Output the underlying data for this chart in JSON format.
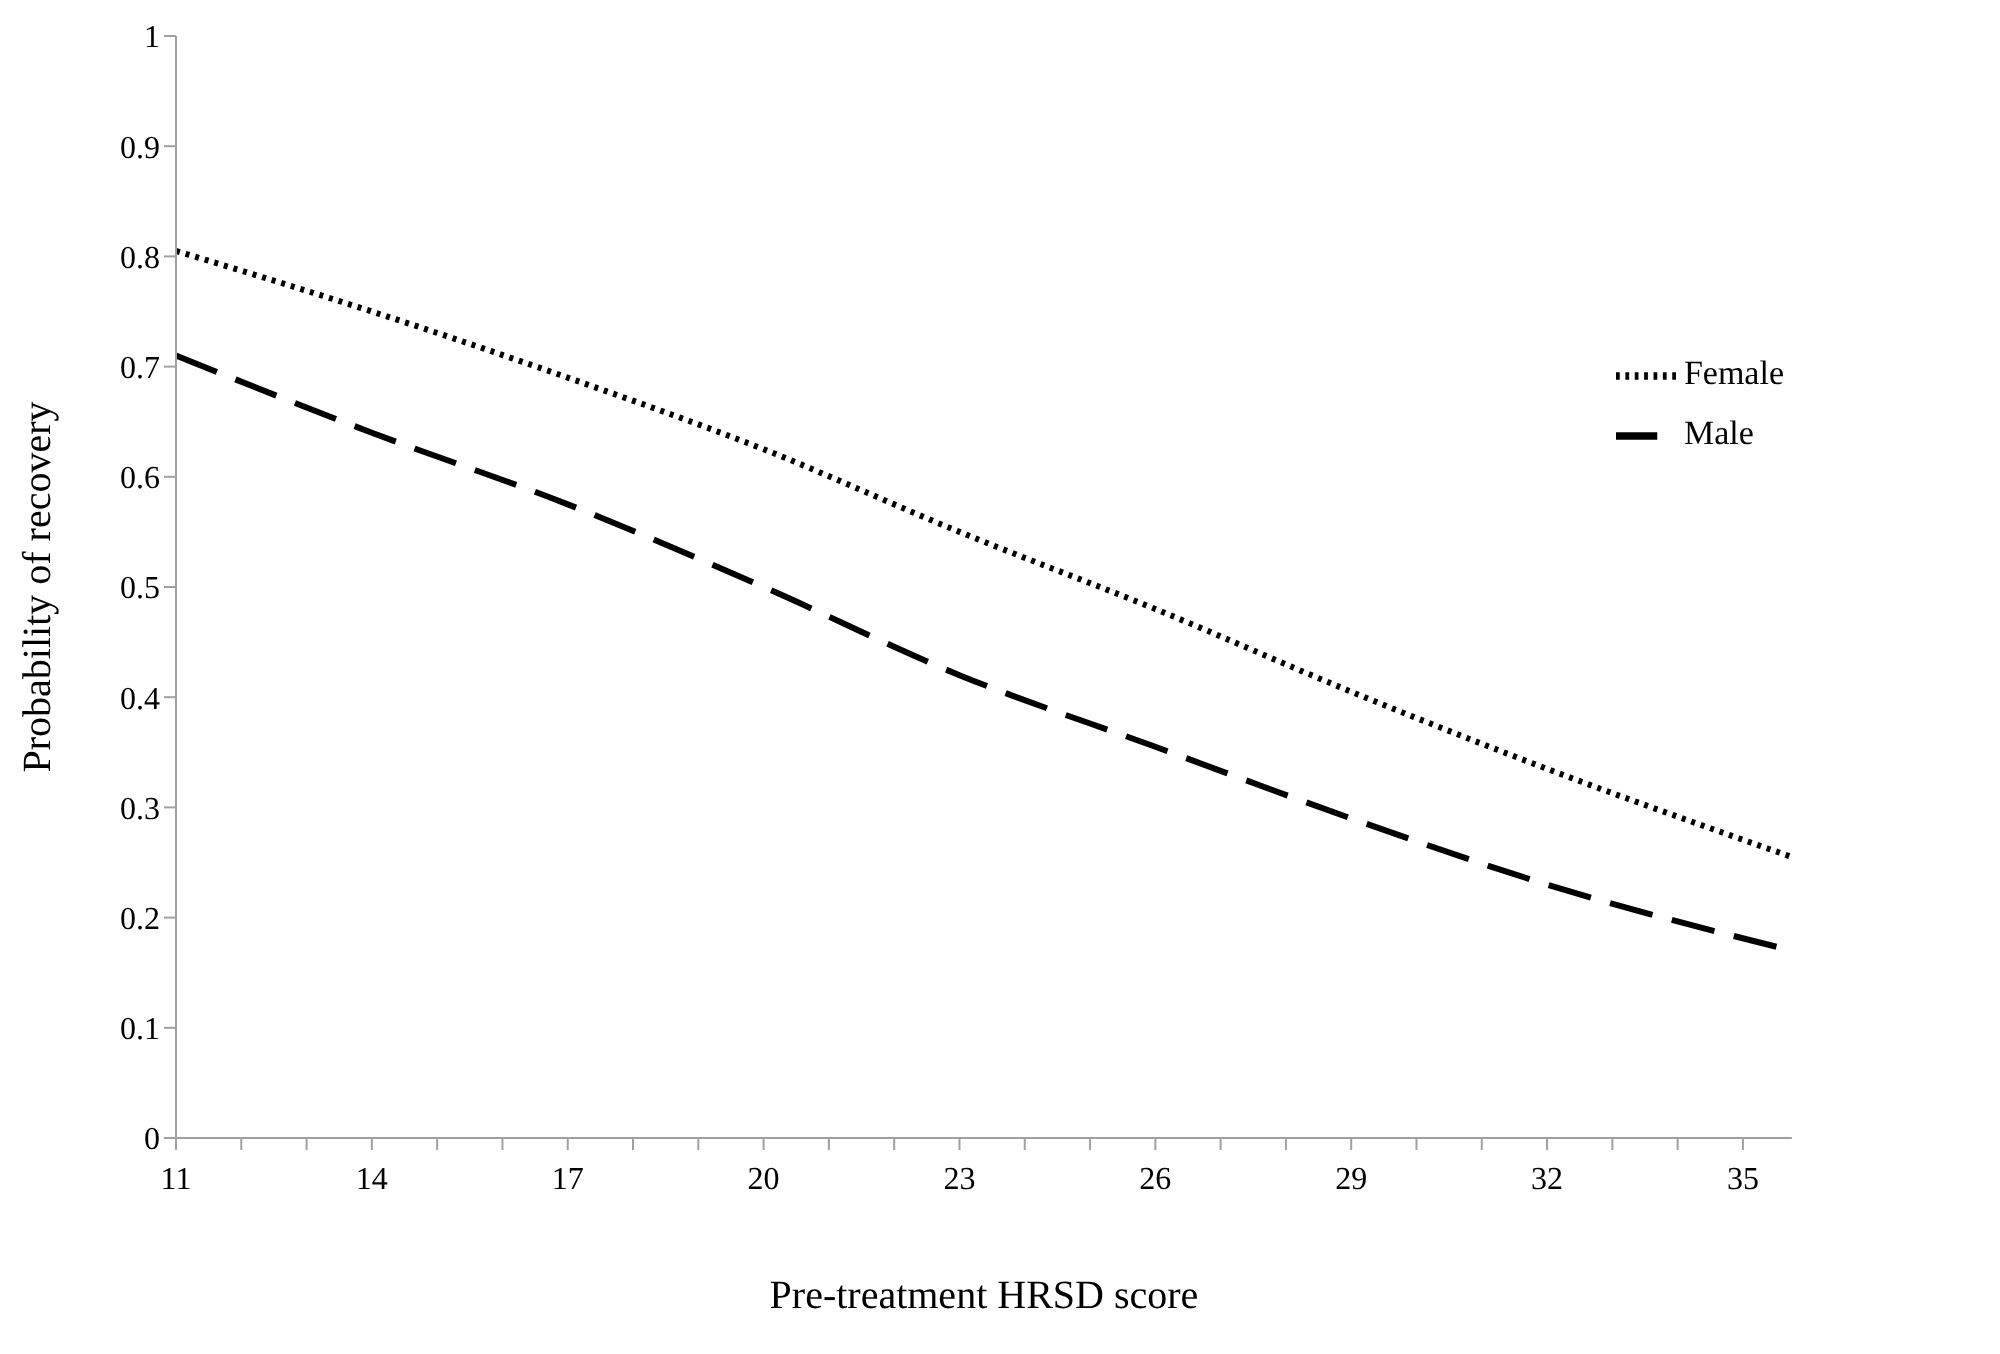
{
  "chart_data": {
    "type": "line",
    "xlabel": "Pre-treatment HRSD score",
    "ylabel": "Probability of recovery",
    "xlim": [
      11,
      35.75
    ],
    "xticks": [
      11,
      {
        "value": 12,
        "label": null
      },
      {
        "value": 13,
        "label": null
      },
      14,
      {
        "value": 15,
        "label": null
      },
      {
        "value": 16,
        "label": null
      },
      17,
      {
        "value": 18,
        "label": null
      },
      {
        "value": 19,
        "label": null
      },
      20,
      {
        "value": 21,
        "label": null
      },
      {
        "value": 22,
        "label": null
      },
      23,
      {
        "value": 24,
        "label": null
      },
      {
        "value": 25,
        "label": null
      },
      26,
      {
        "value": 27,
        "label": null
      },
      {
        "value": 28,
        "label": null
      },
      29,
      {
        "value": 30,
        "label": null
      },
      {
        "value": 31,
        "label": null
      },
      32,
      {
        "value": 33,
        "label": null
      },
      {
        "value": 34,
        "label": null
      },
      35
    ],
    "ylim": [
      0,
      1
    ],
    "yticks": [
      0,
      0.1,
      0.2,
      0.3,
      0.4,
      0.5,
      0.6,
      0.7,
      0.8,
      0.9,
      1
    ],
    "x": [
      11,
      14,
      17,
      20,
      23,
      26,
      29,
      32,
      35.75
    ],
    "series": [
      {
        "name": "Female",
        "color": "#000000",
        "line_style": "dotted",
        "values": [
          0.805,
          0.75,
          0.69,
          0.625,
          0.55,
          0.48,
          0.405,
          0.335,
          0.255
        ]
      },
      {
        "name": "Male",
        "color": "#000000",
        "line_style": "dashed",
        "values": [
          0.71,
          0.64,
          0.575,
          0.5,
          0.42,
          0.355,
          0.29,
          0.23,
          0.17
        ]
      }
    ],
    "legend": "right",
    "grid": false,
    "marker": "none"
  }
}
